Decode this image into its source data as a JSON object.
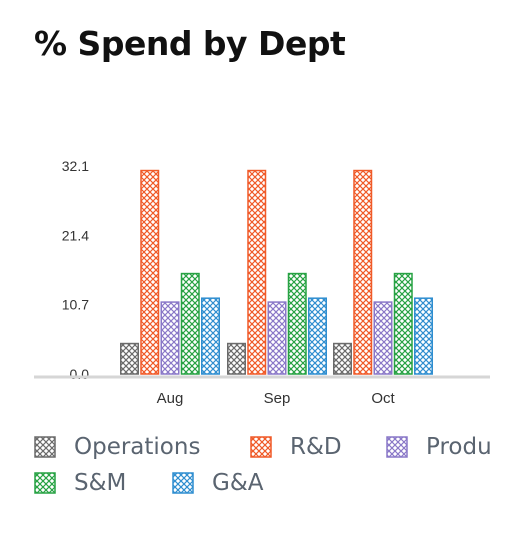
{
  "chart_data": {
    "type": "bar",
    "title": "% Spend by Dept",
    "categories": [
      "Aug",
      "Sep",
      "Oct"
    ],
    "series": [
      {
        "name": "Operations",
        "values": [
          4.7,
          4.7,
          4.7
        ],
        "color": "#6b6b6b"
      },
      {
        "name": "R&D",
        "values": [
          31.4,
          31.4,
          31.4
        ],
        "color": "#f05a28"
      },
      {
        "name": "Product",
        "values": [
          11.1,
          11.1,
          11.1
        ],
        "color": "#8a78c8"
      },
      {
        "name": "S&M",
        "values": [
          15.5,
          15.5,
          15.5
        ],
        "color": "#27a243"
      },
      {
        "name": "G&A",
        "values": [
          11.7,
          11.7,
          11.7
        ],
        "color": "#2f8ed0"
      }
    ],
    "yticks": [
      "0.0",
      "10.7",
      "21.4",
      "32.1"
    ],
    "ylim": [
      0,
      32.1
    ],
    "pattern": "crosshatch",
    "grid": false,
    "legend_position": "bottom"
  }
}
